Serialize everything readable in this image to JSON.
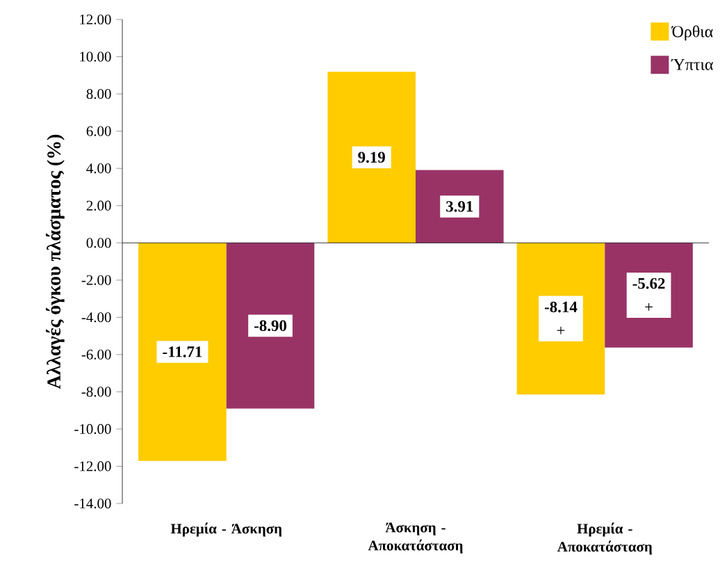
{
  "chart_data": {
    "type": "bar",
    "ylabel": "Αλλαγές όγκου πλάσματος (%)",
    "categories": [
      "Ηρεμία - Άσκηση",
      "Άσκηση - Αποκατάσταση",
      "Ηρεμία - Αποκατάσταση"
    ],
    "series": [
      {
        "name": "Όρθια",
        "color": "#ffcc00",
        "values": [
          -11.71,
          9.19,
          -8.14
        ],
        "value_labels": [
          "-11.71",
          "9.19",
          "-8.14"
        ]
      },
      {
        "name": "Ύπτια",
        "color": "#993366",
        "values": [
          -8.9,
          3.91,
          -5.62
        ],
        "value_labels": [
          "-8.90",
          "3.91",
          "-5.62"
        ]
      }
    ],
    "ylim": [
      -14,
      12
    ],
    "yticks": [
      {
        "value": -14,
        "label": "-14.00"
      },
      {
        "value": -12,
        "label": "-12.00"
      },
      {
        "value": -10,
        "label": "-10.00"
      },
      {
        "value": -8,
        "label": "-8.00"
      },
      {
        "value": -6,
        "label": "-6.00"
      },
      {
        "value": -4,
        "label": "-4.00"
      },
      {
        "value": -2,
        "label": "-2.00"
      },
      {
        "value": 0,
        "label": "0.00"
      },
      {
        "value": 2,
        "label": "2.00"
      },
      {
        "value": 4,
        "label": "4.00"
      },
      {
        "value": 6,
        "label": "6.00"
      },
      {
        "value": 8,
        "label": "8.00"
      },
      {
        "value": 10,
        "label": "10.00"
      },
      {
        "value": 12,
        "label": "12.00"
      }
    ],
    "annotations": [
      "+",
      "+"
    ],
    "legend": "top right"
  }
}
